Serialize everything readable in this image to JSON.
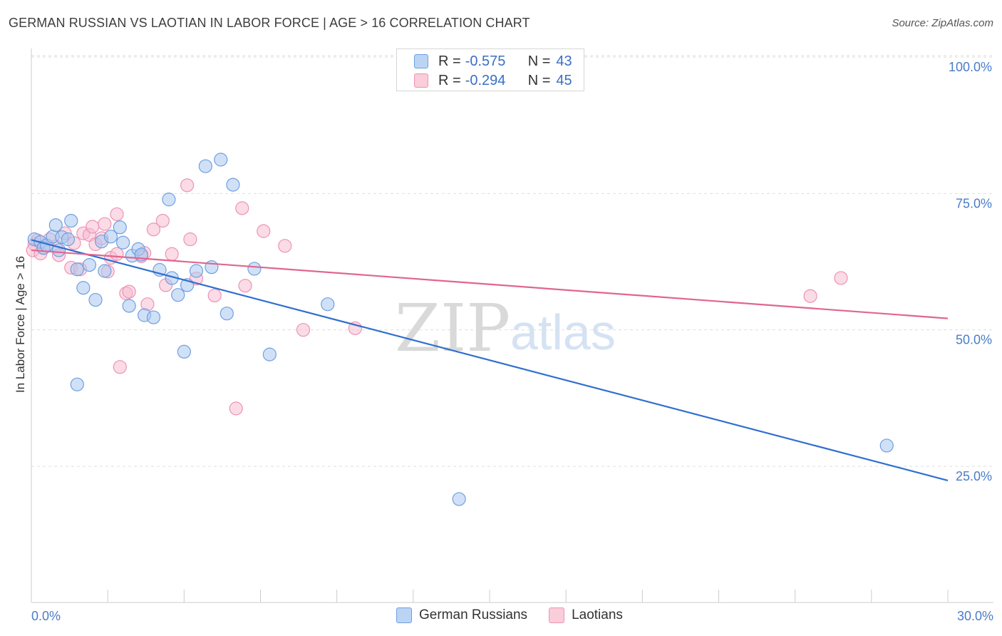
{
  "header": {
    "title": "GERMAN RUSSIAN VS LAOTIAN IN LABOR FORCE | AGE > 16 CORRELATION CHART",
    "source": "Source: ZipAtlas.com"
  },
  "watermark": {
    "zip": "ZIP",
    "atlas": "atlas"
  },
  "legend": {
    "rows": [
      {
        "r_label": "R =",
        "r_value": "-0.575",
        "n_label": "N =",
        "n_value": "43"
      },
      {
        "r_label": "R =",
        "r_value": "-0.294",
        "n_label": "N =",
        "n_value": "45"
      }
    ],
    "bottom": [
      "German Russians",
      "Laotians"
    ]
  },
  "colors": {
    "blue_fill": "#a9c8f0",
    "blue_stroke": "#6f9fe0",
    "blue_line": "#2f6fcf",
    "pink_fill": "#f6bed1",
    "pink_stroke": "#ee93b4",
    "pink_line": "#e0668f",
    "grid": "#dedede",
    "axis": "#cccccc"
  },
  "chart_data": {
    "type": "scatter",
    "title": "GERMAN RUSSIAN VS LAOTIAN IN LABOR FORCE | AGE > 16 CORRELATION CHART",
    "xlabel": "",
    "ylabel": "In Labor Force | Age > 16",
    "xlim": [
      0,
      30
    ],
    "ylim": [
      0,
      102
    ],
    "x_tick_labels": [
      {
        "value": 0,
        "label": "0.0%"
      },
      {
        "value": 30,
        "label": "30.0%"
      }
    ],
    "y_ticks": [
      {
        "value": 25,
        "label": "25.0%"
      },
      {
        "value": 50,
        "label": "50.0%"
      },
      {
        "value": 75,
        "label": "75.0%"
      },
      {
        "value": 100,
        "label": "100.0%"
      }
    ],
    "series": [
      {
        "name": "German Russians",
        "r": -0.575,
        "n": 43,
        "trend": {
          "x": [
            0,
            30
          ],
          "y": [
            66.5,
            22.4
          ]
        },
        "points": [
          {
            "x": 0.1,
            "y": 66.6
          },
          {
            "x": 0.3,
            "y": 66.1
          },
          {
            "x": 0.4,
            "y": 65.0
          },
          {
            "x": 0.5,
            "y": 65.5
          },
          {
            "x": 0.7,
            "y": 67.1
          },
          {
            "x": 0.8,
            "y": 69.2
          },
          {
            "x": 0.9,
            "y": 64.6
          },
          {
            "x": 1.0,
            "y": 67.0
          },
          {
            "x": 1.2,
            "y": 66.6
          },
          {
            "x": 1.3,
            "y": 70.0
          },
          {
            "x": 1.5,
            "y": 61.1
          },
          {
            "x": 1.7,
            "y": 57.7
          },
          {
            "x": 1.9,
            "y": 61.9
          },
          {
            "x": 2.1,
            "y": 55.5
          },
          {
            "x": 2.3,
            "y": 66.2
          },
          {
            "x": 2.4,
            "y": 60.8
          },
          {
            "x": 2.6,
            "y": 67.1
          },
          {
            "x": 2.9,
            "y": 68.8
          },
          {
            "x": 3.0,
            "y": 66.0
          },
          {
            "x": 3.2,
            "y": 54.4
          },
          {
            "x": 3.3,
            "y": 63.6
          },
          {
            "x": 3.5,
            "y": 64.8
          },
          {
            "x": 3.6,
            "y": 63.8
          },
          {
            "x": 3.7,
            "y": 52.7
          },
          {
            "x": 4.0,
            "y": 52.3
          },
          {
            "x": 4.2,
            "y": 61.0
          },
          {
            "x": 4.5,
            "y": 73.9
          },
          {
            "x": 4.6,
            "y": 59.5
          },
          {
            "x": 4.8,
            "y": 56.4
          },
          {
            "x": 5.0,
            "y": 46.0
          },
          {
            "x": 5.1,
            "y": 58.2
          },
          {
            "x": 5.4,
            "y": 60.8
          },
          {
            "x": 5.7,
            "y": 80.0
          },
          {
            "x": 5.9,
            "y": 61.5
          },
          {
            "x": 6.2,
            "y": 81.2
          },
          {
            "x": 6.4,
            "y": 53.0
          },
          {
            "x": 6.6,
            "y": 76.6
          },
          {
            "x": 7.3,
            "y": 61.2
          },
          {
            "x": 7.8,
            "y": 45.5
          },
          {
            "x": 9.7,
            "y": 54.7
          },
          {
            "x": 14.0,
            "y": 19.0
          },
          {
            "x": 28.0,
            "y": 28.8
          },
          {
            "x": 1.5,
            "y": 40.0
          }
        ]
      },
      {
        "name": "Laotians",
        "r": -0.294,
        "n": 45,
        "trend": {
          "x": [
            0,
            30
          ],
          "y": [
            64.6,
            52.1
          ]
        },
        "points": [
          {
            "x": 0.1,
            "y": 65.7
          },
          {
            "x": 0.2,
            "y": 66.4
          },
          {
            "x": 0.4,
            "y": 65.2
          },
          {
            "x": 0.6,
            "y": 66.6
          },
          {
            "x": 0.8,
            "y": 65.3
          },
          {
            "x": 0.9,
            "y": 63.7
          },
          {
            "x": 1.1,
            "y": 67.7
          },
          {
            "x": 1.3,
            "y": 61.4
          },
          {
            "x": 1.4,
            "y": 65.9
          },
          {
            "x": 1.6,
            "y": 61.1
          },
          {
            "x": 1.7,
            "y": 67.7
          },
          {
            "x": 1.9,
            "y": 67.4
          },
          {
            "x": 2.0,
            "y": 68.9
          },
          {
            "x": 2.1,
            "y": 65.7
          },
          {
            "x": 2.3,
            "y": 66.8
          },
          {
            "x": 2.4,
            "y": 69.4
          },
          {
            "x": 2.5,
            "y": 60.7
          },
          {
            "x": 2.6,
            "y": 63.2
          },
          {
            "x": 2.8,
            "y": 63.9
          },
          {
            "x": 2.8,
            "y": 71.2
          },
          {
            "x": 3.1,
            "y": 56.7
          },
          {
            "x": 3.2,
            "y": 57.0
          },
          {
            "x": 3.7,
            "y": 64.1
          },
          {
            "x": 3.8,
            "y": 54.7
          },
          {
            "x": 4.0,
            "y": 68.4
          },
          {
            "x": 4.3,
            "y": 70.0
          },
          {
            "x": 4.4,
            "y": 58.2
          },
          {
            "x": 4.6,
            "y": 63.9
          },
          {
            "x": 5.1,
            "y": 76.5
          },
          {
            "x": 5.2,
            "y": 66.6
          },
          {
            "x": 5.4,
            "y": 59.4
          },
          {
            "x": 6.0,
            "y": 56.3
          },
          {
            "x": 6.7,
            "y": 35.6
          },
          {
            "x": 6.9,
            "y": 72.3
          },
          {
            "x": 7.0,
            "y": 58.1
          },
          {
            "x": 7.6,
            "y": 68.1
          },
          {
            "x": 8.3,
            "y": 65.4
          },
          {
            "x": 8.9,
            "y": 50.0
          },
          {
            "x": 10.6,
            "y": 50.3
          },
          {
            "x": 25.5,
            "y": 56.2
          },
          {
            "x": 26.5,
            "y": 59.5
          },
          {
            "x": 2.9,
            "y": 43.2
          },
          {
            "x": 0.05,
            "y": 64.6
          },
          {
            "x": 0.3,
            "y": 64.0
          },
          {
            "x": 3.6,
            "y": 63.5
          }
        ]
      }
    ]
  }
}
